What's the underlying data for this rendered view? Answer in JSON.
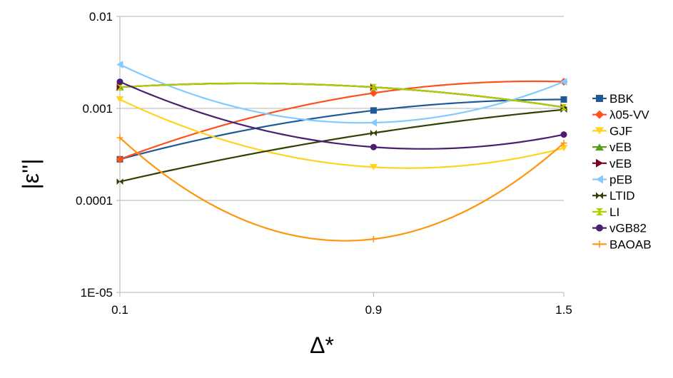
{
  "chart_data": {
    "type": "line",
    "title": "",
    "xlabel": "Δ*",
    "ylabel": "|ε''|",
    "y_scale": "log",
    "ylim": [
      1e-05,
      0.01
    ],
    "x": [
      0.1,
      0.9,
      1.5
    ],
    "x_tick_labels": [
      "0.1",
      "0.9",
      "1.5"
    ],
    "y_ticks": [
      1e-05,
      0.0001,
      0.001,
      0.01
    ],
    "y_tick_labels": [
      "1E-05",
      "0.0001",
      "0.001",
      "0.01"
    ],
    "grid": "horizontal",
    "legend_position": "right",
    "series": [
      {
        "name": "BBK",
        "values": [
          0.00028,
          0.00095,
          0.00125
        ],
        "color": "#1f5a96",
        "marker": "square"
      },
      {
        "name": "λ05-VV",
        "values": [
          0.00028,
          0.00147,
          0.00195
        ],
        "color": "#ff4f1c",
        "marker": "diamond"
      },
      {
        "name": "GJF",
        "values": [
          0.00125,
          0.00023,
          0.00037
        ],
        "color": "#ffd320",
        "marker": "triangle-down"
      },
      {
        "name": "vEB",
        "values": [
          0.0017,
          0.0017,
          0.00103
        ],
        "color": "#579d1c",
        "marker": "triangle-up"
      },
      {
        "name": "vEB",
        "values": [
          0.0017,
          0.0017,
          0.00103
        ],
        "color": "#7e0021",
        "marker": "triangle-right"
      },
      {
        "name": "pEB",
        "values": [
          0.003,
          0.0007,
          0.00195
        ],
        "color": "#83caff",
        "marker": "triangle-left"
      },
      {
        "name": "LTID",
        "values": [
          0.00016,
          0.00054,
          0.00097
        ],
        "color": "#314004",
        "marker": "bowtie"
      },
      {
        "name": "LI",
        "values": [
          0.0017,
          0.0017,
          0.00103
        ],
        "color": "#aecf00",
        "marker": "hourglass"
      },
      {
        "name": "vGB82",
        "values": [
          0.00195,
          0.00038,
          0.00052
        ],
        "color": "#4b1f6f",
        "marker": "circle"
      },
      {
        "name": "BAOAB",
        "values": [
          0.00048,
          3.8e-05,
          0.00042
        ],
        "color": "#ff950e",
        "marker": "plus"
      }
    ]
  }
}
